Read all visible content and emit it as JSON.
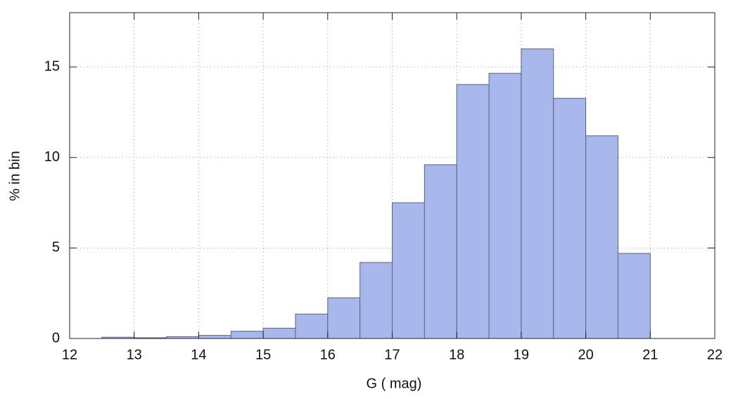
{
  "chart_data": {
    "type": "histogram",
    "x_label": "G ( mag)",
    "y_label": "% in bin",
    "bins": [
      12.5,
      13,
      13.5,
      14,
      14.5,
      15,
      15.5,
      16,
      16.5,
      17,
      17.5,
      18,
      18.5,
      19,
      19.5,
      20,
      20.5,
      21
    ],
    "values": [
      0.07,
      0.04,
      0.1,
      0.17,
      0.4,
      0.57,
      1.35,
      2.25,
      4.2,
      7.5,
      9.6,
      14.03,
      14.65,
      16,
      13.27,
      11.2,
      4.7
    ],
    "color": "#a9b8ec",
    "edge_color": "#5a6080",
    "xlim": [
      12,
      22
    ],
    "xticks": [
      12,
      13,
      14,
      15,
      16,
      17,
      18,
      19,
      20,
      21,
      22
    ],
    "ylim": [
      0,
      18
    ],
    "yticks": [
      0,
      5,
      10,
      15
    ],
    "grid": true
  }
}
